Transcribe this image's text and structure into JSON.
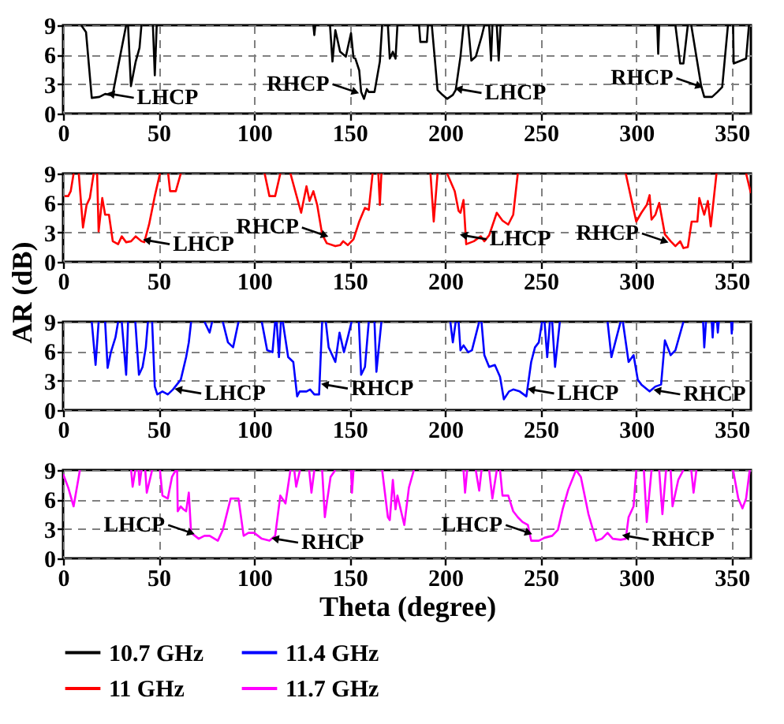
{
  "chart_data": [
    {
      "type": "line",
      "xlim": [
        0,
        360
      ],
      "xticks": [
        0,
        50,
        100,
        150,
        200,
        250,
        300,
        350
      ],
      "ylim": [
        0,
        9
      ],
      "yticks": [
        0,
        3,
        6,
        9
      ],
      "grid": true,
      "series": [
        {
          "name": "10.7 GHz",
          "color": "#000000",
          "x": [
            9.5,
            12,
            15,
            19,
            22,
            24.6,
            26,
            33,
            33.3,
            34,
            35.5,
            38,
            40,
            41,
            41.3,
            47,
            48,
            49,
            49.3,
            131,
            131.5,
            132,
            132.3,
            139.7,
            141,
            142.5,
            145,
            148,
            150.7,
            152,
            153,
            155,
            156,
            157.5,
            159,
            160,
            163,
            165.8,
            167,
            167.3,
            170,
            171,
            172.6,
            174,
            175,
            175.3,
            186.3,
            187,
            190.4,
            191,
            191.3,
            193,
            196,
            198.6,
            201,
            204,
            205.5,
            208,
            209.6,
            209.9,
            212,
            213.7,
            216,
            219,
            220.5,
            220.8,
            223,
            224,
            224.7,
            225,
            227,
            228,
            229,
            229.3,
            311,
            311.5,
            312,
            312.3,
            320.5,
            323,
            324.7,
            327,
            327.3,
            328.8,
            334,
            335.6,
            339.7,
            342.5,
            345,
            348,
            348.3,
            350.7,
            351,
            357.5,
            359
          ],
          "values": [
            9,
            8.3,
            1.6,
            1.7,
            2.0,
            1.9,
            2.0,
            9,
            null,
            9,
            2.8,
            5.3,
            6.7,
            9,
            null,
            9,
            3.9,
            9,
            null,
            9,
            8,
            9,
            null,
            9,
            5.3,
            8.5,
            6.3,
            5.8,
            8.2,
            5.7,
            5.6,
            4.4,
            2.2,
            1.5,
            2.5,
            2.2,
            2.2,
            5.3,
            9,
            null,
            9,
            5.6,
            6.3,
            5.6,
            9,
            null,
            9,
            7.3,
            7.3,
            9,
            null,
            9,
            2.4,
            1.9,
            1.5,
            1.9,
            2.4,
            5.8,
            9,
            null,
            9,
            5.4,
            5.8,
            7.8,
            9,
            null,
            9,
            5.4,
            9,
            null,
            9,
            5.4,
            9,
            null,
            9,
            6.1,
            9,
            null,
            9,
            5.1,
            5.1,
            9,
            null,
            9,
            2.8,
            1.7,
            1.7,
            2.2,
            2.7,
            9,
            null,
            9,
            5.1,
            5.6,
            9
          ]
        }
      ],
      "annotations": [
        {
          "text": "LHCP",
          "x": 25,
          "y": 2.0
        },
        {
          "text": "RHCP",
          "x": 153,
          "y": 2.2
        },
        {
          "text": "LHCP",
          "x": 207,
          "y": 2.5
        },
        {
          "text": "RHCP",
          "x": 333,
          "y": 2.8
        }
      ]
    },
    {
      "type": "line",
      "ylabel": "AR (dB)",
      "xlim": [
        0,
        360
      ],
      "xticks": [
        0,
        50,
        100,
        150,
        200,
        250,
        300,
        350
      ],
      "ylim": [
        0,
        9
      ],
      "yticks": [
        0,
        3,
        6,
        9
      ],
      "grid": true,
      "series": [
        {
          "name": "11 GHz",
          "color": "#ff0000",
          "x": [
            0.8,
            2.7,
            4,
            5.5,
            5.8,
            8.2,
            10.4,
            12.3,
            14,
            16,
            16.3,
            17.8,
            18.6,
            20.5,
            22,
            24,
            26,
            28.8,
            30.7,
            33,
            35.6,
            38,
            41,
            42.5,
            45,
            48,
            50.7,
            51,
            55,
            56,
            59,
            61.6,
            61.9,
            105.5,
            108,
            111,
            113.7,
            114,
            119,
            124.6,
            127.4,
            129,
            131,
            133,
            135.6,
            138,
            142.5,
            145,
            146.6,
            149,
            152,
            155,
            158,
            160,
            162,
            162.3,
            165,
            165.8,
            166.6,
            166.9,
            192.3,
            194,
            196,
            196.3,
            201,
            205,
            207,
            208,
            209.6,
            211,
            215,
            218.6,
            220.5,
            223,
            227,
            230,
            233,
            235.6,
            238,
            238.3,
            294.5,
            300,
            302.7,
            305.5,
            307,
            308,
            310,
            312,
            315,
            318,
            320.5,
            323,
            324.7,
            327,
            329,
            332,
            333,
            335.6,
            337.5,
            339,
            342,
            342.3,
            357.5,
            360
          ],
          "values": [
            6.7,
            6.7,
            7.2,
            9,
            null,
            9,
            3.5,
            5.8,
            6.5,
            9,
            null,
            9,
            3.1,
            6.5,
            4.8,
            4.8,
            2.1,
            1.8,
            2.6,
            2.0,
            2.1,
            2.6,
            2.1,
            2.0,
            3.8,
            6.7,
            9,
            null,
            9,
            7.2,
            7.2,
            9,
            null,
            9,
            6.7,
            6.7,
            9,
            null,
            9,
            5.0,
            7.7,
            6.2,
            7.2,
            5.8,
            2.8,
            1.9,
            1.6,
            1.7,
            2.1,
            1.7,
            2.3,
            4.1,
            5.5,
            5.3,
            9,
            null,
            9,
            5.8,
            9,
            null,
            9,
            4.1,
            9,
            null,
            9,
            7.2,
            5.2,
            5.0,
            6.3,
            1.8,
            2.1,
            2.6,
            2.1,
            2.7,
            5.0,
            4.2,
            3.8,
            4.8,
            9,
            null,
            9,
            4.1,
            5.0,
            5.8,
            6.8,
            4.3,
            4.8,
            6.0,
            2.8,
            2.1,
            1.6,
            2.1,
            1.4,
            1.5,
            4.1,
            4.1,
            6.5,
            4.8,
            6.2,
            3.6,
            9,
            null,
            9,
            7.0
          ]
        }
      ],
      "annotations": [
        {
          "text": "LHCP",
          "x": 43.8,
          "y": 2.2
        },
        {
          "text": "RHCP",
          "x": 137,
          "y": 2.7
        },
        {
          "text": "LHCP",
          "x": 209.6,
          "y": 2.7
        },
        {
          "text": "RHCP",
          "x": 315,
          "y": 2.1
        }
      ]
    },
    {
      "type": "line",
      "xlim": [
        0,
        360
      ],
      "xticks": [
        0,
        50,
        100,
        150,
        200,
        250,
        300,
        350
      ],
      "ylim": [
        0,
        9
      ],
      "yticks": [
        0,
        3,
        6,
        9
      ],
      "grid": true,
      "series": [
        {
          "name": "11.4 GHz",
          "color": "#0000ff",
          "x": [
            15,
            17,
            18.6,
            18.9,
            22,
            23.3,
            25,
            27.4,
            28.8,
            29.1,
            30.7,
            33,
            34,
            34.3,
            37.8,
            39.7,
            41.6,
            43.3,
            44.4,
            44.7,
            46.6,
            48,
            49.3,
            52,
            54.8,
            57.5,
            61.6,
            64.4,
            65.8,
            67,
            67.3,
            74,
            76.7,
            78,
            78.3,
            83.6,
            86.3,
            89,
            91.8,
            92.1,
            104,
            106.8,
            109.6,
            111,
            111.3,
            111.8,
            113,
            114,
            114.3,
            115,
            117.8,
            120.5,
            122.5,
            123.8,
            127.4,
            129.3,
            131.5,
            134,
            135.6,
            135.9,
            137.5,
            139,
            142.5,
            144.7,
            147,
            149,
            151,
            151.3,
            154.8,
            156,
            158,
            160,
            160.3,
            163,
            164,
            166.6,
            166.9,
            202.7,
            204,
            205.5,
            205.8,
            207,
            208,
            209.6,
            212,
            214,
            217.8,
            218.1,
            219,
            220.5,
            223,
            226,
            228.7,
            230.7,
            233.4,
            235.6,
            239,
            242.5,
            245,
            247,
            249,
            250.7,
            251,
            252,
            253.4,
            254.8,
            255.1,
            256,
            257.5,
            260,
            260.3,
            285,
            287,
            289,
            291.8,
            292.1,
            293,
            296,
            298.6,
            300.8,
            302.7,
            307,
            310,
            313,
            315,
            318,
            320.5,
            324.7,
            325,
            335,
            335.6,
            336.5,
            336.8,
            339.5,
            340,
            340.5,
            340.8,
            342.3,
            342.7,
            343.2,
            343.5,
            349.7,
            350,
            350.4
          ],
          "values": [
            9,
            4.6,
            9,
            null,
            9,
            4.3,
            5.9,
            7.4,
            9,
            null,
            9,
            3.6,
            9,
            null,
            9,
            3.6,
            4.4,
            6.4,
            9,
            null,
            9,
            2.4,
            1.6,
            1.9,
            1.6,
            2.1,
            3.1,
            5.4,
            6.9,
            9,
            null,
            9,
            7.9,
            9,
            null,
            9,
            6.9,
            6.4,
            9,
            null,
            9,
            6.1,
            5.9,
            9,
            null,
            9,
            5.4,
            9,
            null,
            9,
            5.4,
            4.9,
            1.4,
            1.9,
            1.9,
            2.1,
            1.6,
            1.6,
            9,
            null,
            9,
            6.4,
            4.9,
            7.9,
            5.9,
            7.4,
            9,
            null,
            9,
            3.6,
            4.4,
            9,
            null,
            9,
            3.9,
            9,
            null,
            9,
            6.9,
            9,
            null,
            9,
            6.1,
            6.6,
            5.9,
            6.1,
            9,
            null,
            9,
            5.6,
            4.4,
            4.6,
            3.4,
            1.1,
            1.9,
            2.1,
            1.9,
            1.4,
            4.9,
            6.4,
            6.9,
            9,
            null,
            9,
            5.4,
            9,
            null,
            9,
            4.4,
            9,
            null,
            9,
            5.4,
            6.9,
            9,
            null,
            9,
            4.9,
            5.6,
            3.1,
            2.6,
            1.9,
            2.4,
            2.6,
            7.1,
            5.6,
            6.1,
            9,
            null,
            9,
            6.4,
            9,
            null,
            9,
            7.4,
            9,
            null,
            9,
            7.9,
            9,
            null,
            9,
            7.8,
            9
          ]
        }
      ],
      "annotations": [
        {
          "text": "LHCP",
          "x": 60.3,
          "y": 2.1
        },
        {
          "text": "RHCP",
          "x": 137,
          "y": 2.6
        },
        {
          "text": "LHCP",
          "x": 245,
          "y": 2.1
        },
        {
          "text": "RHCP",
          "x": 311,
          "y": 2.0
        }
      ]
    },
    {
      "type": "line",
      "xlabel": "Theta (degree)",
      "legend": "bottom",
      "xlim": [
        0,
        360
      ],
      "xticks": [
        0,
        50,
        100,
        150,
        200,
        250,
        300,
        350
      ],
      "ylim": [
        0,
        9
      ],
      "yticks": [
        0,
        3,
        6,
        9
      ],
      "grid": true,
      "series": [
        {
          "name": "11.7 GHz",
          "color": "#ff00ff",
          "x": [
            0,
            2.7,
            5.5,
            8.8,
            9.1,
            35.6,
            36.4,
            37.8,
            38.1,
            39.5,
            40,
            41,
            41.3,
            43,
            43.8,
            46.6,
            46.9,
            50.7,
            52,
            54.8,
            57,
            59,
            59.3,
            59.7,
            60,
            61.6,
            63,
            64.4,
            65.8,
            67,
            71,
            74,
            76.7,
            81,
            83.6,
            87.7,
            91.8,
            94.5,
            97,
            100,
            104,
            108,
            111,
            113.7,
            116.4,
            119,
            119.3,
            121,
            122,
            124,
            124.3,
            128.8,
            130,
            131.5,
            131.8,
            135.6,
            137,
            138,
            140,
            142.5,
            142.8,
            150.7,
            151.2,
            152,
            152.3,
            167,
            170,
            171,
            172.6,
            174,
            175,
            178.6,
            181,
            183.6,
            183.9,
            209.6,
            210.4,
            211.5,
            211.8,
            216,
            217.8,
            219,
            219.3,
            223,
            224.7,
            227,
            227.3,
            228.7,
            230,
            233,
            235.6,
            238,
            240.5,
            243.3,
            245,
            249,
            252,
            256,
            259,
            261.6,
            264.4,
            268.5,
            271,
            275,
            279,
            282,
            285,
            287.7,
            291.8,
            294.5,
            296,
            298.6,
            300,
            300.3,
            304,
            305.5,
            308,
            308.3,
            312,
            313.7,
            315.6,
            315.9,
            318,
            319,
            322,
            324.7,
            325,
            328.8,
            330,
            331.5,
            331.8,
            350.7,
            353.4,
            355.6,
            357.5,
            359.4
          ],
          "values": [
            8.6,
            7.2,
            5.3,
            9,
            null,
            9,
            7.3,
            9,
            null,
            9,
            7.5,
            9,
            null,
            9,
            6.7,
            9,
            null,
            9,
            6.4,
            6.1,
            8.3,
            9,
            null,
            9,
            4.8,
            5.3,
            5.0,
            4.8,
            6.7,
            2.6,
            2.0,
            2.3,
            2.3,
            1.8,
            2.9,
            6.1,
            6.1,
            2.3,
            2.6,
            2.6,
            2.0,
            1.8,
            2.3,
            6.4,
            5.6,
            9,
            null,
            9,
            7.3,
            9,
            null,
            9,
            6.7,
            9,
            null,
            9,
            4.2,
            5.6,
            8.3,
            9,
            null,
            9,
            6.7,
            9,
            null,
            9,
            4.2,
            3.9,
            8,
            5.0,
            6.4,
            3.4,
            7.2,
            9,
            null,
            9,
            6.7,
            9,
            null,
            9,
            6.9,
            9,
            null,
            9,
            6.1,
            9,
            null,
            9,
            6.4,
            6.4,
            4.8,
            4.2,
            3.7,
            3.4,
            1.8,
            1.8,
            2.1,
            2.3,
            2.9,
            5.1,
            7.0,
            9,
            8.3,
            4.5,
            1.8,
            2.0,
            2.6,
            2.0,
            1.9,
            2.0,
            4.2,
            5.3,
            9,
            null,
            9,
            3.7,
            9,
            null,
            9,
            4.5,
            9,
            null,
            9,
            5.3,
            8.0,
            9,
            null,
            9,
            6.7,
            9,
            null,
            9,
            6.1,
            5.1,
            6.1,
            9
          ]
        }
      ],
      "annotations": [
        {
          "text": "LHCP",
          "x": 67,
          "y": 2.6
        },
        {
          "text": "RHCP",
          "x": 111,
          "y": 2.0
        },
        {
          "text": "LHCP",
          "x": 243.7,
          "y": 2.6
        },
        {
          "text": "RHCP",
          "x": 294.5,
          "y": 2.3
        }
      ]
    }
  ]
}
